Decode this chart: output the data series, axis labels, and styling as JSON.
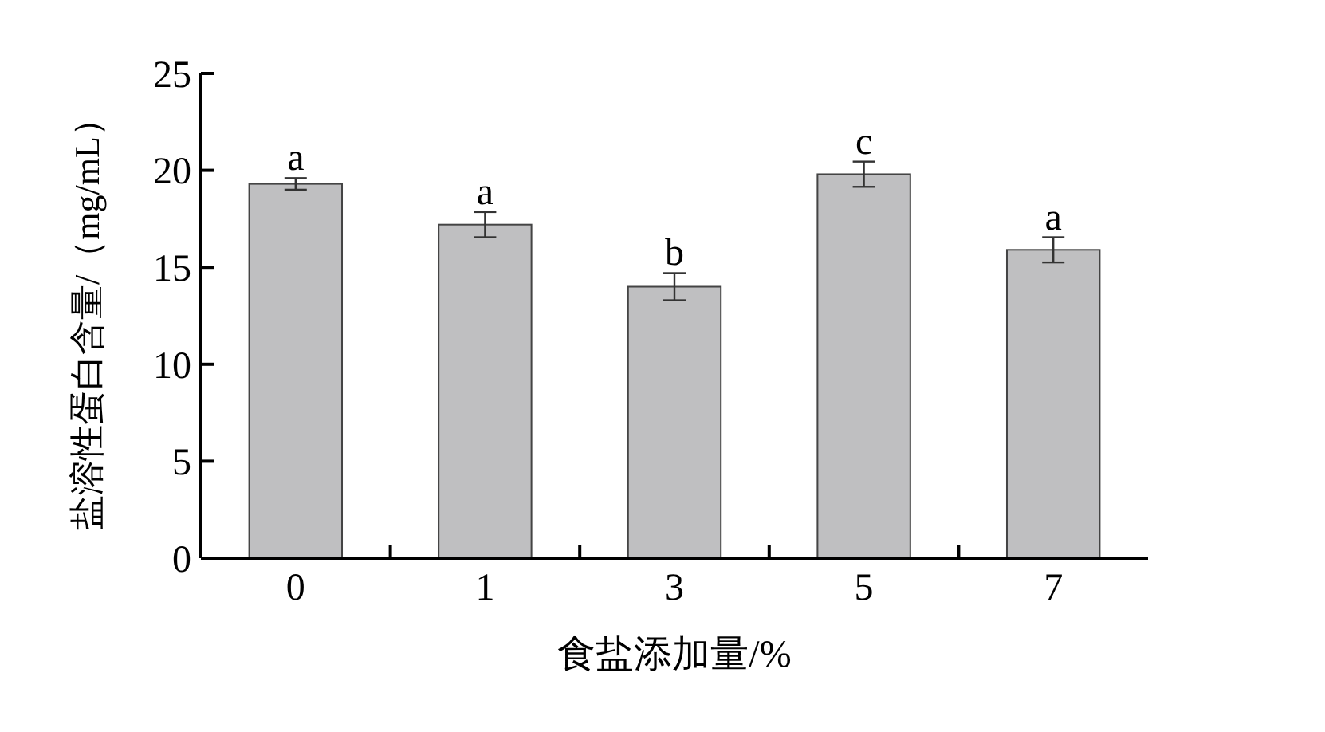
{
  "chart_data": {
    "type": "bar",
    "xlabel": "食盐添加量/%",
    "ylabel": "盐溶性蛋白含量/（mg/mL）",
    "categories": [
      "0",
      "1",
      "3",
      "5",
      "7"
    ],
    "values": [
      19.3,
      17.2,
      14.0,
      19.8,
      15.9
    ],
    "color": "#bfbfc1",
    "errors": [
      0.3,
      0.65,
      0.7,
      0.65,
      0.65
    ],
    "ylim": [
      0,
      25
    ],
    "yticks": [
      0,
      5,
      10,
      15,
      20,
      25
    ],
    "grid": false,
    "annotations": [
      {
        "text": "a",
        "x": "0",
        "y": 19.6
      },
      {
        "text": "a",
        "x": "1",
        "y": 17.85
      },
      {
        "text": "b",
        "x": "3",
        "y": 14.7
      },
      {
        "text": "c",
        "x": "5",
        "y": 20.45
      },
      {
        "text": "a",
        "x": "7",
        "y": 16.55
      }
    ]
  }
}
